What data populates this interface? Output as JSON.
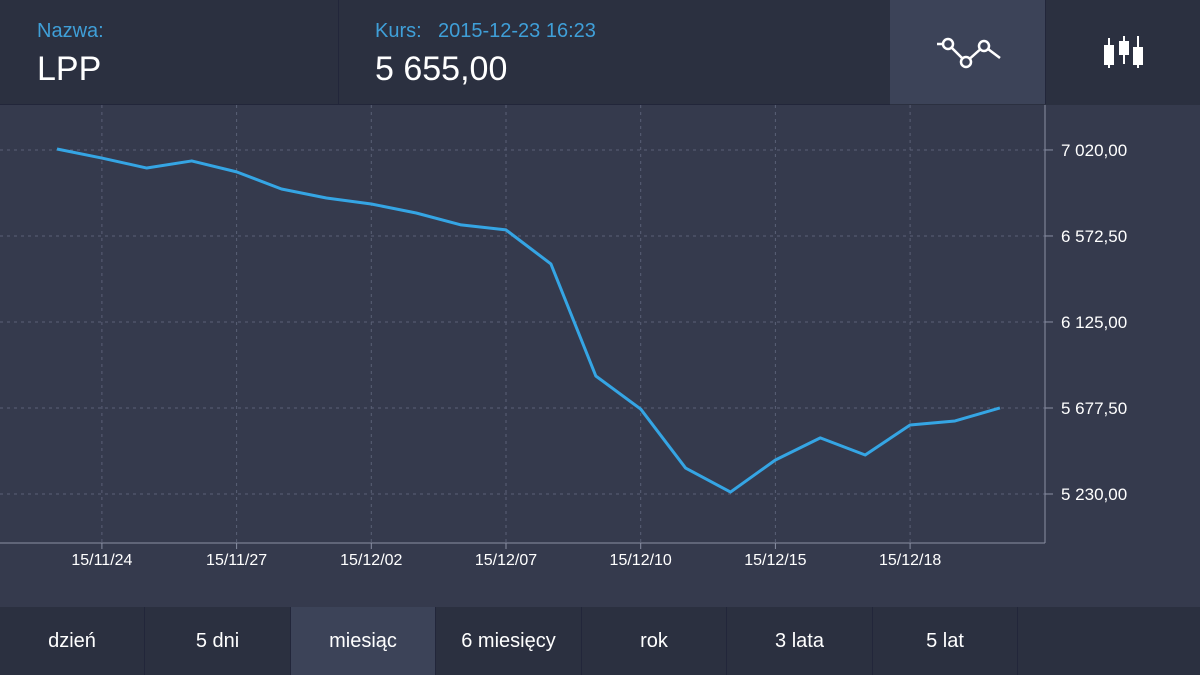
{
  "header": {
    "name_label": "Nazwa:",
    "name": "LPP",
    "price_label": "Kurs:",
    "datetime": "2015-12-23 16:23",
    "price": "5 655,00"
  },
  "chart_data": {
    "type": "line",
    "categories": [
      null,
      "15/11/24",
      null,
      null,
      "15/11/27",
      null,
      null,
      "15/12/02",
      null,
      null,
      "15/12/07",
      null,
      null,
      "15/12/10",
      null,
      null,
      "15/12/15",
      null,
      null,
      "15/12/18",
      null,
      null
    ],
    "series": [
      {
        "name": "LPP",
        "color": "#35a5e4",
        "values": [
          7025,
          6978,
          6926,
          6963,
          6906,
          6817,
          6770,
          6739,
          6692,
          6630,
          6604,
          6427,
          5844,
          5672,
          5365,
          5240,
          5407,
          5522,
          5433,
          5589,
          5610,
          5678
        ]
      }
    ],
    "ylim": [
      4975,
      7254
    ],
    "yticks": [
      {
        "value": 7020,
        "label": "7 020,00"
      },
      {
        "value": 6572.5,
        "label": "6 572,50"
      },
      {
        "value": 6125,
        "label": "6 125,00"
      },
      {
        "value": 5677.5,
        "label": "5 677,50"
      },
      {
        "value": 5230,
        "label": "5 230,00"
      }
    ],
    "grid": true
  },
  "tabs": {
    "items": [
      "dzień",
      "5 dni",
      "miesiąc",
      "6 miesięcy",
      "rok",
      "3 lata",
      "5 lat"
    ],
    "selected": 2
  }
}
